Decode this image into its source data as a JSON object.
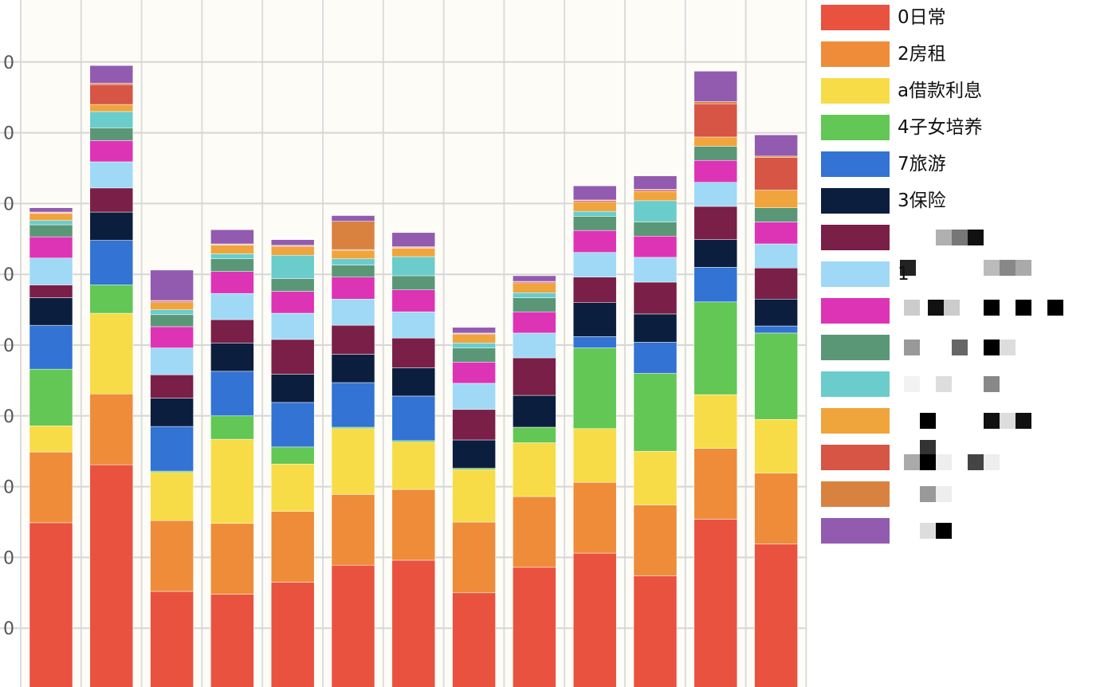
{
  "chart_data": {
    "type": "bar",
    "stacked": true,
    "grid": true,
    "background": "#fdfcf7",
    "ylim": [
      0,
      10
    ],
    "yticks": [
      1,
      2,
      3,
      4,
      5,
      6,
      7,
      8,
      9
    ],
    "ytick_labels": [
      "0",
      "0",
      "0",
      "0",
      "0",
      "0",
      "0",
      "0",
      "0"
    ],
    "categories": [
      "",
      "",
      "",
      "",
      "",
      "",
      "",
      "",
      "",
      "",
      "",
      "",
      ""
    ],
    "series": [
      {
        "name": "0日常",
        "color": "#e9523f",
        "values": [
          2.49,
          3.31,
          1.52,
          1.48,
          1.65,
          1.89,
          1.96,
          1.5,
          1.86,
          2.06,
          1.74,
          2.54,
          2.19
        ]
      },
      {
        "name": "2房租",
        "color": "#ee8c3a",
        "values": [
          1.0,
          1.0,
          1.0,
          1.0,
          1.0,
          1.0,
          1.0,
          1.0,
          1.0,
          1.0,
          1.0,
          1.0,
          1.0
        ]
      },
      {
        "name": "a借款利息",
        "color": "#f7dc48",
        "values": [
          0.37,
          1.14,
          0.68,
          1.19,
          0.67,
          0.93,
          0.67,
          0.74,
          0.76,
          0.76,
          0.76,
          0.76,
          0.76
        ]
      },
      {
        "name": "4子女培养",
        "color": "#62c754",
        "values": [
          0.8,
          0.4,
          0.02,
          0.33,
          0.24,
          0.02,
          0.02,
          0.02,
          0.22,
          1.14,
          1.1,
          1.31,
          1.22
        ]
      },
      {
        "name": "7旅游",
        "color": "#3273d4",
        "values": [
          0.62,
          0.63,
          0.63,
          0.63,
          0.63,
          0.63,
          0.63,
          0.0,
          0.0,
          0.16,
          0.44,
          0.49,
          0.1
        ]
      },
      {
        "name": "3保险",
        "color": "#0c1e3e",
        "values": [
          0.39,
          0.4,
          0.4,
          0.4,
          0.4,
          0.4,
          0.4,
          0.4,
          0.45,
          0.48,
          0.4,
          0.39,
          0.38
        ]
      },
      {
        "name": "",
        "color": "#7a1f47",
        "values": [
          0.18,
          0.34,
          0.33,
          0.33,
          0.49,
          0.41,
          0.42,
          0.43,
          0.53,
          0.36,
          0.45,
          0.47,
          0.44
        ]
      },
      {
        "name": "1",
        "color": "#9fd9f6",
        "values": [
          0.38,
          0.37,
          0.38,
          0.37,
          0.37,
          0.37,
          0.37,
          0.37,
          0.35,
          0.35,
          0.35,
          0.34,
          0.34
        ]
      },
      {
        "name": "",
        "color": "#dd34b6",
        "values": [
          0.3,
          0.3,
          0.3,
          0.31,
          0.31,
          0.31,
          0.31,
          0.3,
          0.3,
          0.31,
          0.3,
          0.31,
          0.31
        ]
      },
      {
        "name": "",
        "color": "#5a9777",
        "values": [
          0.17,
          0.18,
          0.17,
          0.18,
          0.18,
          0.17,
          0.2,
          0.2,
          0.2,
          0.2,
          0.2,
          0.2,
          0.2
        ]
      },
      {
        "name": "",
        "color": "#6bcccc",
        "values": [
          0.06,
          0.23,
          0.07,
          0.07,
          0.33,
          0.09,
          0.27,
          0.07,
          0.07,
          0.07,
          0.3,
          0.0,
          0.0
        ]
      },
      {
        "name": "",
        "color": "#f0a43c",
        "values": [
          0.1,
          0.1,
          0.1,
          0.12,
          0.12,
          0.12,
          0.12,
          0.12,
          0.13,
          0.13,
          0.13,
          0.13,
          0.25
        ]
      },
      {
        "name": "",
        "color": "#d65545",
        "values": [
          0.01,
          0.28,
          0.02,
          0.01,
          0.01,
          0.01,
          0.01,
          0.01,
          0.02,
          0.02,
          0.02,
          0.47,
          0.46
        ]
      },
      {
        "name": "",
        "color": "#d98240",
        "values": [
          0.01,
          0.02,
          0.01,
          0.01,
          0.01,
          0.4,
          0.01,
          0.01,
          0.01,
          0.01,
          0.01,
          0.03,
          0.02
        ]
      },
      {
        "name": "",
        "color": "#925bb0",
        "values": [
          0.06,
          0.25,
          0.43,
          0.2,
          0.08,
          0.08,
          0.2,
          0.08,
          0.08,
          0.2,
          0.19,
          0.43,
          0.3
        ]
      }
    ],
    "legend_position": "right"
  }
}
